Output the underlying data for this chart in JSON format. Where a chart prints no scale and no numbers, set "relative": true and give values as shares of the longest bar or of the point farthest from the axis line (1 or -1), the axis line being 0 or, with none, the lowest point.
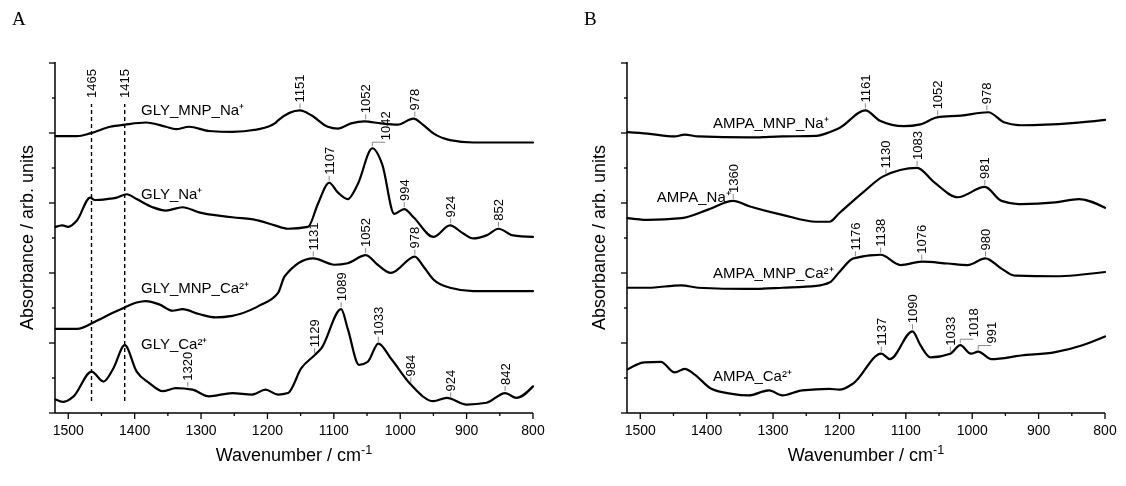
{
  "chart_data": [
    {
      "type": "line",
      "title": "A",
      "xlabel": "Wavenumber / cm$^{-1}$",
      "ylabel": "Absorbance / arb. units",
      "relative": true,
      "tick_labels": "x",
      "xlim": [
        1520,
        800
      ],
      "xticks": [
        1500,
        {
          "value": 1450,
          "label": null
        },
        1400,
        {
          "value": 1350,
          "label": null
        },
        1300,
        {
          "value": 1250,
          "label": null
        },
        1200,
        {
          "value": 1150,
          "label": null
        },
        1100,
        {
          "value": 1050,
          "label": null
        },
        1000,
        {
          "value": 950,
          "label": null
        },
        900,
        {
          "value": 850,
          "label": null
        },
        800
      ],
      "series": [
        {
          "name": "GLY_MNP_Na⁺",
          "color": "#000000",
          "x": [
            1519,
            1487,
            1467,
            1437,
            1415,
            1383,
            1353,
            1338,
            1318,
            1288,
            1253,
            1213,
            1189,
            1184,
            1151,
            1134,
            1109,
            1094,
            1074,
            1054,
            1029,
            1004,
            980,
            965,
            950,
            925,
            890,
            800
          ],
          "values": [
            0.915,
            0.915,
            0.924,
            0.946,
            0.953,
            0.96,
            0.946,
            0.938,
            0.946,
            0.932,
            0.929,
            0.938,
            0.957,
            0.967,
            1.0,
            0.984,
            0.946,
            0.94,
            0.957,
            0.964,
            0.957,
            0.953,
            0.973,
            0.951,
            0.924,
            0.902,
            0.894,
            0.894
          ]
        },
        {
          "name": "GLY_Na⁺",
          "color": "#000000",
          "x": [
            1519,
            1509,
            1500,
            1487,
            1467,
            1460,
            1442,
            1427,
            1412,
            1397,
            1373,
            1353,
            1328,
            1303,
            1253,
            1213,
            1189,
            1169,
            1139,
            1124,
            1107,
            1094,
            1079,
            1064,
            1042,
            1027,
            1009,
            994,
            980,
            950,
            925,
            905,
            890,
            870,
            852,
            830,
            800
          ],
          "values": [
            0.615,
            0.62,
            0.615,
            0.636,
            0.712,
            0.704,
            0.707,
            0.712,
            0.723,
            0.707,
            0.68,
            0.669,
            0.68,
            0.663,
            0.647,
            0.636,
            0.62,
            0.609,
            0.615,
            0.691,
            0.761,
            0.729,
            0.707,
            0.756,
            0.875,
            0.821,
            0.658,
            0.674,
            0.647,
            0.582,
            0.62,
            0.593,
            0.577,
            0.587,
            0.609,
            0.587,
            0.582
          ]
        },
        {
          "name": "GLY_MNP_Ca²⁺",
          "color": "#000000",
          "x": [
            1519,
            1487,
            1457,
            1432,
            1415,
            1397,
            1383,
            1363,
            1343,
            1328,
            1303,
            1278,
            1253,
            1213,
            1184,
            1174,
            1131,
            1099,
            1079,
            1052,
            1034,
            1014,
            978,
            965,
            950,
            925,
            890,
            800
          ],
          "values": [
            0.278,
            0.278,
            0.305,
            0.332,
            0.349,
            0.365,
            0.37,
            0.359,
            0.338,
            0.343,
            0.327,
            0.316,
            0.321,
            0.354,
            0.397,
            0.452,
            0.511,
            0.49,
            0.495,
            0.522,
            0.49,
            0.463,
            0.517,
            0.484,
            0.441,
            0.414,
            0.403,
            0.403
          ]
        },
        {
          "name": "GLY_Ca²⁺",
          "color": "#000000",
          "x": [
            1519,
            1507,
            1492,
            1465,
            1447,
            1432,
            1415,
            1397,
            1378,
            1358,
            1338,
            1313,
            1288,
            1253,
            1223,
            1203,
            1184,
            1169,
            1149,
            1129,
            1119,
            1089,
            1079,
            1062,
            1049,
            1033,
            1014,
            984,
            950,
            930,
            900,
            870,
            842,
            825,
            800
          ],
          "values": [
            0.045,
            0.037,
            0.055,
            0.137,
            0.104,
            0.148,
            0.224,
            0.137,
            0.099,
            0.072,
            0.082,
            0.077,
            0.055,
            0.066,
            0.061,
            0.077,
            0.061,
            0.066,
            0.148,
            0.191,
            0.213,
            0.343,
            0.278,
            0.159,
            0.169,
            0.229,
            0.18,
            0.094,
            0.039,
            0.05,
            0.028,
            0.034,
            0.066,
            0.05,
            0.088
          ]
        }
      ],
      "ref_lines": [
        {
          "axis": "x",
          "value": 1465,
          "label": "1465",
          "line_style": "dashed"
        },
        {
          "axis": "x",
          "value": 1415,
          "label": "1415",
          "line_style": "dashed"
        }
      ],
      "annotations": [
        {
          "text": "1151",
          "x": 1151,
          "y": 1.0
        },
        {
          "text": "1052",
          "x": 1052,
          "y": 0.964
        },
        {
          "text": "978",
          "x": 978,
          "y": 0.973
        },
        {
          "text": "1107",
          "x": 1107,
          "y": 0.761
        },
        {
          "text": "1042",
          "x": 1042,
          "y": 0.875
        },
        {
          "text": "994",
          "x": 994,
          "y": 0.674
        },
        {
          "text": "924",
          "x": 924,
          "y": 0.62
        },
        {
          "text": "852",
          "x": 852,
          "y": 0.609
        },
        {
          "text": "1131",
          "x": 1131,
          "y": 0.511
        },
        {
          "text": "1052",
          "x": 1052,
          "y": 0.522
        },
        {
          "text": "978",
          "x": 978,
          "y": 0.517
        },
        {
          "text": "1320",
          "x": 1320,
          "y": 0.08
        },
        {
          "text": "1129",
          "x": 1129,
          "y": 0.191
        },
        {
          "text": "1089",
          "x": 1089,
          "y": 0.343
        },
        {
          "text": "1033",
          "x": 1033,
          "y": 0.229
        },
        {
          "text": "984",
          "x": 984,
          "y": 0.094
        },
        {
          "text": "924",
          "x": 924,
          "y": 0.045
        },
        {
          "text": "842",
          "x": 842,
          "y": 0.066
        }
      ]
    },
    {
      "type": "line",
      "title": "B",
      "xlabel": "Wavenumber / cm$^{-1}$",
      "ylabel": "Absorbance / arb. units",
      "relative": true,
      "tick_labels": "x",
      "xlim": [
        1520,
        800
      ],
      "xticks": [
        1500,
        {
          "value": 1450,
          "label": null
        },
        1400,
        {
          "value": 1350,
          "label": null
        },
        1300,
        {
          "value": 1250,
          "label": null
        },
        1200,
        {
          "value": 1150,
          "label": null
        },
        1100,
        {
          "value": 1050,
          "label": null
        },
        1000,
        {
          "value": 950,
          "label": null
        },
        900,
        {
          "value": 850,
          "label": null
        },
        800
      ],
      "series": [
        {
          "name": "AMPA_MNP_Na⁺",
          "color": "#000000",
          "x": [
            1519,
            1489,
            1448,
            1433,
            1413,
            1337,
            1286,
            1235,
            1215,
            1200,
            1161,
            1139,
            1103,
            1078,
            1053,
            1017,
            976,
            951,
            926,
            850,
            800
          ],
          "values": [
            0.928,
            0.923,
            0.914,
            0.92,
            0.914,
            0.911,
            0.914,
            0.916,
            0.928,
            0.942,
            1.0,
            0.966,
            0.948,
            0.954,
            0.977,
            0.983,
            0.994,
            0.96,
            0.951,
            0.958,
            0.969
          ]
        },
        {
          "name": "AMPA_Na⁺",
          "color": "#000000",
          "x": [
            1519,
            1489,
            1438,
            1398,
            1360,
            1337,
            1286,
            1235,
            1215,
            1200,
            1164,
            1134,
            1083,
            1058,
            1022,
            981,
            956,
            926,
            875,
            839,
            800
          ],
          "values": [
            0.644,
            0.638,
            0.644,
            0.672,
            0.701,
            0.684,
            0.655,
            0.632,
            0.632,
            0.661,
            0.73,
            0.782,
            0.81,
            0.764,
            0.713,
            0.747,
            0.701,
            0.69,
            0.696,
            0.707,
            0.678
          ]
        },
        {
          "name": "AMPA_MNP_Ca²⁺",
          "color": "#000000",
          "x": [
            1519,
            1489,
            1438,
            1413,
            1337,
            1286,
            1235,
            1215,
            1200,
            1179,
            1138,
            1108,
            1076,
            1037,
            1007,
            980,
            956,
            936,
            875,
            800
          ],
          "values": [
            0.414,
            0.414,
            0.422,
            0.414,
            0.41,
            0.414,
            0.42,
            0.431,
            0.466,
            0.511,
            0.523,
            0.489,
            0.5,
            0.494,
            0.489,
            0.511,
            0.477,
            0.454,
            0.452,
            0.466
          ]
        },
        {
          "name": "AMPA_Ca²⁺",
          "color": "#000000",
          "x": [
            1519,
            1494,
            1469,
            1448,
            1433,
            1418,
            1393,
            1362,
            1337,
            1306,
            1286,
            1256,
            1215,
            1200,
            1179,
            1137,
            1124,
            1090,
            1078,
            1063,
            1033,
            1018,
            1002,
            991,
            971,
            926,
            875,
            834,
            800
          ],
          "values": [
            0.144,
            0.167,
            0.169,
            0.134,
            0.146,
            0.127,
            0.08,
            0.063,
            0.058,
            0.075,
            0.058,
            0.075,
            0.08,
            0.077,
            0.098,
            0.196,
            0.178,
            0.27,
            0.224,
            0.184,
            0.196,
            0.224,
            0.196,
            0.203,
            0.178,
            0.19,
            0.201,
            0.224,
            0.253
          ]
        }
      ],
      "annotations": [
        {
          "text": "1161",
          "x": 1161,
          "y": 1.0
        },
        {
          "text": "1052",
          "x": 1052,
          "y": 0.977
        },
        {
          "text": "978",
          "x": 978,
          "y": 0.994
        },
        {
          "text": "1360",
          "x": 1360,
          "y": 0.701
        },
        {
          "text": "1130",
          "x": 1130,
          "y": 0.782
        },
        {
          "text": "1083",
          "x": 1083,
          "y": 0.81
        },
        {
          "text": "981",
          "x": 981,
          "y": 0.747
        },
        {
          "text": "1176",
          "x": 1176,
          "y": 0.511
        },
        {
          "text": "1138",
          "x": 1138,
          "y": 0.523
        },
        {
          "text": "1076",
          "x": 1076,
          "y": 0.5
        },
        {
          "text": "980",
          "x": 980,
          "y": 0.511
        },
        {
          "text": "1137",
          "x": 1137,
          "y": 0.196
        },
        {
          "text": "1090",
          "x": 1090,
          "y": 0.27
        },
        {
          "text": "1033",
          "x": 1033,
          "y": 0.196
        },
        {
          "text": "1018",
          "x": 1018,
          "y": 0.224
        },
        {
          "text": "991",
          "x": 991,
          "y": 0.203
        }
      ]
    }
  ]
}
